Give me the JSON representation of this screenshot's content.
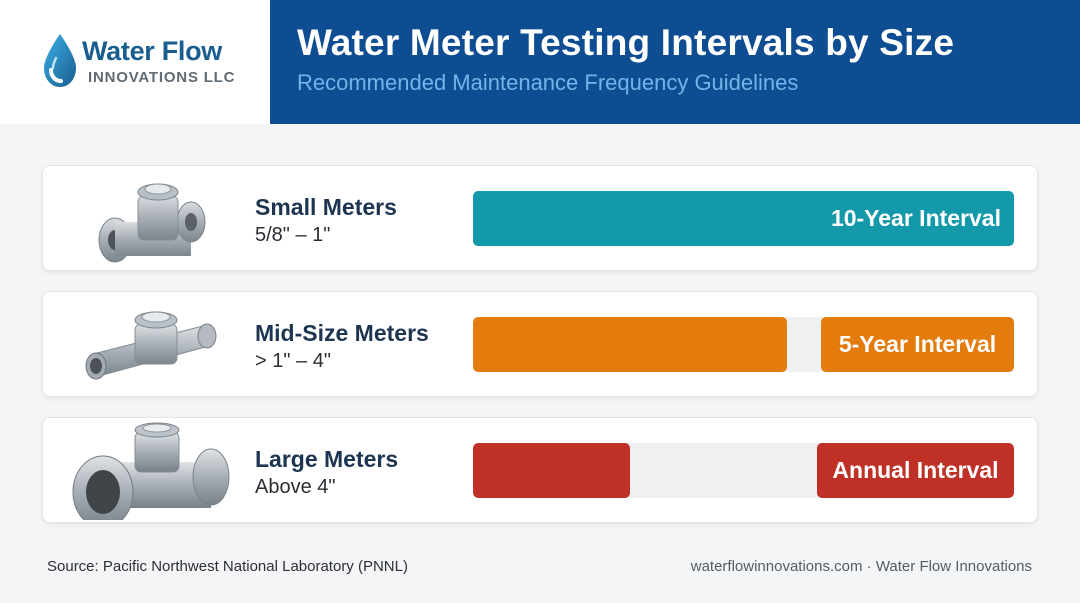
{
  "brand": {
    "name_line1": "Water Flow",
    "name_line2": "INNOVATIONS LLC"
  },
  "header": {
    "title": "Water Meter Testing Intervals by Size",
    "subtitle": "Recommended Maintenance Frequency Guidelines"
  },
  "rows": [
    {
      "label": "Small Meters",
      "range": "5/8\" – 1\"",
      "interval": "10-Year Interval",
      "interval_years": 10,
      "bar_fraction": 1.0,
      "color": "#1499aa"
    },
    {
      "label": "Mid-Size Meters",
      "range": "> 1\" – 4\"",
      "interval": "5-Year Interval",
      "interval_years": 5,
      "bar_fraction": 0.58,
      "color": "#e37b0d"
    },
    {
      "label": "Large Meters",
      "range": "Above 4\"",
      "interval": "Annual Interval",
      "interval_years": 1,
      "bar_fraction": 0.29,
      "color": "#bf3027"
    }
  ],
  "colors": {
    "header_band": "#0f4d93",
    "subtitle": "#6fb6e8",
    "logo_blue": "#1a5d8f",
    "track": "#eef0f2"
  },
  "icons": [
    "water-drop-icon",
    "small-meter-icon",
    "mid-meter-icon",
    "large-meter-icon"
  ],
  "footer": {
    "source": "Source: Pacific Northwest National Laboratory (PNNL)",
    "credit": "waterflowinnovations.com · Water Flow Innovations"
  }
}
